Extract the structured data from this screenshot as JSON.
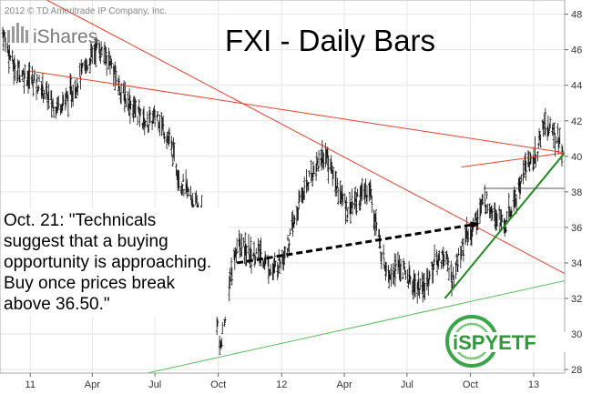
{
  "chart_data": {
    "type": "ohlc",
    "title": "FXI - Daily Bars",
    "copyright": "2012 © TD Ameritrade IP Company, Inc.",
    "logo_left": "iShares",
    "logo_right": "iSPYETF",
    "x_tick_labels": [
      "11",
      "Apr",
      "Jul",
      "Oct",
      "12",
      "Apr",
      "Jul",
      "Oct",
      "13"
    ],
    "x_tick_dates": [
      "2011-01-01",
      "2011-04-01",
      "2011-07-01",
      "2011-10-01",
      "2012-01-01",
      "2012-04-01",
      "2012-07-01",
      "2012-10-01",
      "2013-01-01"
    ],
    "y_ticks": [
      28,
      30,
      32,
      34,
      36,
      38,
      40,
      42,
      44,
      46,
      48
    ],
    "ylim": [
      27.8,
      48.8
    ],
    "xlim": [
      "2010-11-18",
      "2013-02-15"
    ],
    "price_path": [
      [
        "2010-11-22",
        47.0
      ],
      [
        "2010-12-08",
        45.0
      ],
      [
        "2010-12-28",
        44.5
      ],
      [
        "2011-01-15",
        44.0
      ],
      [
        "2011-02-05",
        42.8
      ],
      [
        "2011-02-25",
        43.3
      ],
      [
        "2011-03-15",
        44.5
      ],
      [
        "2011-04-08",
        46.2
      ],
      [
        "2011-04-25",
        45.5
      ],
      [
        "2011-05-15",
        43.5
      ],
      [
        "2011-06-05",
        42.5
      ],
      [
        "2011-06-20",
        41.8
      ],
      [
        "2011-07-05",
        42.3
      ],
      [
        "2011-07-25",
        40.5
      ],
      [
        "2011-08-08",
        38.5
      ],
      [
        "2011-08-25",
        37.5
      ],
      [
        "2011-09-10",
        36.5
      ],
      [
        "2011-09-25",
        32.5
      ],
      [
        "2011-10-04",
        29.0
      ],
      [
        "2011-10-15",
        32.5
      ],
      [
        "2011-10-28",
        35.0
      ],
      [
        "2011-11-15",
        34.5
      ],
      [
        "2011-12-01",
        34.5
      ],
      [
        "2011-12-20",
        33.5
      ],
      [
        "2012-01-10",
        35.0
      ],
      [
        "2012-02-01",
        38.0
      ],
      [
        "2012-02-20",
        39.5
      ],
      [
        "2012-03-05",
        40.2
      ],
      [
        "2012-03-20",
        38.5
      ],
      [
        "2012-04-05",
        37.0
      ],
      [
        "2012-04-25",
        37.8
      ],
      [
        "2012-05-08",
        38.2
      ],
      [
        "2012-05-25",
        34.5
      ],
      [
        "2012-06-05",
        33.5
      ],
      [
        "2012-06-20",
        33.8
      ],
      [
        "2012-07-10",
        32.8
      ],
      [
        "2012-07-25",
        32.5
      ],
      [
        "2012-08-10",
        34.0
      ],
      [
        "2012-08-25",
        34.5
      ],
      [
        "2012-09-05",
        33.0
      ],
      [
        "2012-09-20",
        35.0
      ],
      [
        "2012-10-05",
        36.0
      ],
      [
        "2012-10-21",
        37.5
      ],
      [
        "2012-11-05",
        37.0
      ],
      [
        "2012-11-20",
        36.0
      ],
      [
        "2012-12-05",
        37.5
      ],
      [
        "2012-12-20",
        39.5
      ],
      [
        "2013-01-05",
        40.0
      ],
      [
        "2013-01-15",
        41.8
      ],
      [
        "2013-01-25",
        41.5
      ],
      [
        "2013-02-05",
        41.0
      ],
      [
        "2013-02-12",
        40.3
      ]
    ],
    "trendlines": [
      {
        "color": "#e8412c",
        "from": [
          "2011-01-01",
          44.8
        ],
        "to": [
          "2013-02-15",
          40.2
        ]
      },
      {
        "color": "#e8412c",
        "from": [
          "2011-01-25",
          48.8
        ],
        "to": [
          "2013-02-15",
          33.4
        ]
      },
      {
        "color": "#e8412c",
        "from": [
          "2012-09-18",
          39.4
        ],
        "to": [
          "2013-02-15",
          40.2
        ]
      },
      {
        "color": "#1e8c1e",
        "from": [
          "2012-08-25",
          32.0
        ],
        "to": [
          "2013-02-15",
          40.2
        ]
      },
      {
        "color": "#5cbf5c",
        "from": [
          "2011-06-20",
          27.8
        ],
        "to": [
          "2013-02-15",
          33.0
        ]
      }
    ],
    "resistance_line": {
      "y": 38.2,
      "from": "2012-10-20",
      "to": "2013-02-15",
      "color": "#555555"
    },
    "arrow": {
      "from": [
        "2011-10-28",
        34.0
      ],
      "to": [
        "2012-10-12",
        36.2
      ],
      "color": "#000000",
      "style": "dashed"
    },
    "annotation_lines": [
      "Oct. 21: \"Technicals",
      "suggest that a buying",
      "opportunity is approaching.",
      "Buy once prices break",
      "above 36.50.\""
    ],
    "grid": true
  }
}
